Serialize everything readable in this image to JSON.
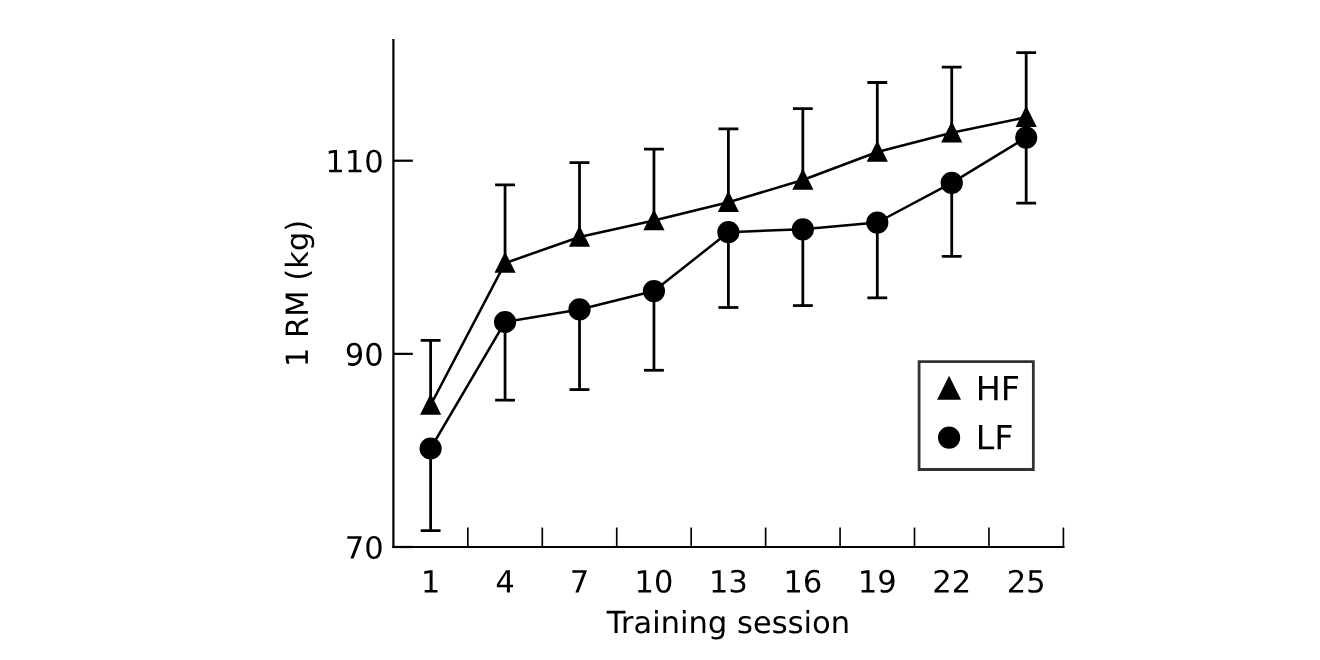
{
  "chart_data": {
    "type": "line",
    "xlabel": "Training session",
    "ylabel": "1 RM (kg)",
    "x": [
      1,
      4,
      7,
      10,
      13,
      16,
      19,
      22,
      25
    ],
    "xlim": [
      -0.5,
      26.5
    ],
    "xticks": [
      1,
      4,
      7,
      10,
      13,
      16,
      19,
      22,
      25,
      {
        "value": 2.5,
        "label": null
      },
      {
        "value": 5.5,
        "label": null
      },
      {
        "value": 8.5,
        "label": null
      },
      {
        "value": 11.5,
        "label": null
      },
      {
        "value": 14.5,
        "label": null
      },
      {
        "value": 17.5,
        "label": null
      },
      {
        "value": 20.5,
        "label": null
      },
      {
        "value": 23.5,
        "label": null
      },
      {
        "value": 26.5,
        "label": null
      }
    ],
    "ylim": [
      70,
      122.5
    ],
    "yticks": [
      70,
      90,
      110
    ],
    "grid": false,
    "legend": "bottom right",
    "series": [
      {
        "name": "HF",
        "color": "#000000",
        "marker": "triangle",
        "values": [
          84.7,
          99.4,
          102.1,
          103.8,
          105.7,
          108.0,
          110.9,
          112.9,
          114.5
        ],
        "errors": [
          [
            84.7,
            91.4
          ],
          [
            99.4,
            107.5
          ],
          [
            102.1,
            109.8
          ],
          [
            103.8,
            111.2
          ],
          [
            105.7,
            113.3
          ],
          [
            108.0,
            115.4
          ],
          [
            110.9,
            118.1
          ],
          [
            112.9,
            119.7
          ],
          [
            114.5,
            121.2
          ]
        ]
      },
      {
        "name": "LF",
        "color": "#000000",
        "marker": "circle",
        "values": [
          80.2,
          93.3,
          94.6,
          96.5,
          102.6,
          102.9,
          103.6,
          107.7,
          112.4
        ],
        "errors": [
          [
            71.7,
            80.2
          ],
          [
            85.2,
            93.3
          ],
          [
            86.3,
            94.6
          ],
          [
            88.3,
            96.5
          ],
          [
            94.8,
            102.6
          ],
          [
            95.0,
            102.9
          ],
          [
            95.8,
            103.6
          ],
          [
            100.1,
            107.7
          ],
          [
            105.6,
            112.4
          ]
        ]
      }
    ]
  }
}
